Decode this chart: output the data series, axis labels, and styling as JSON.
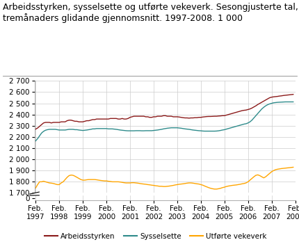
{
  "title": "Arbeidsstyrken, sysselsette og utførte vekeverk. Sesongjusterte tal,\ntremånaders glidande gjennomsnitt. 1997-2008. 1 000",
  "color_arbeidsstyrken": "#8B1A1A",
  "color_sysselsette": "#2E8B8B",
  "color_utforte": "#FFA500",
  "legend_labels": [
    "Arbeidsstyrken",
    "Sysselsette",
    "Utførte vekeverk"
  ],
  "background_color": "#ffffff",
  "grid_color": "#cccccc",
  "title_fontsize": 9.0,
  "tick_fontsize": 7.5,
  "legend_fontsize": 7.5,
  "arbeidsstyrken": [
    2270,
    2280,
    2295,
    2310,
    2325,
    2330,
    2330,
    2330,
    2325,
    2330,
    2330,
    2330,
    2330,
    2335,
    2335,
    2335,
    2345,
    2350,
    2350,
    2345,
    2340,
    2340,
    2335,
    2335,
    2335,
    2340,
    2345,
    2345,
    2350,
    2355,
    2355,
    2360,
    2360,
    2360,
    2360,
    2360,
    2360,
    2360,
    2365,
    2365,
    2365,
    2365,
    2360,
    2360,
    2365,
    2360,
    2360,
    2365,
    2375,
    2380,
    2385,
    2385,
    2385,
    2385,
    2385,
    2385,
    2380,
    2380,
    2375,
    2375,
    2380,
    2380,
    2385,
    2385,
    2385,
    2390,
    2390,
    2385,
    2385,
    2385,
    2380,
    2380,
    2380,
    2378,
    2375,
    2372,
    2370,
    2370,
    2368,
    2370,
    2370,
    2372,
    2372,
    2375,
    2375,
    2378,
    2380,
    2382,
    2383,
    2383,
    2384,
    2385,
    2385,
    2387,
    2388,
    2390,
    2390,
    2395,
    2400,
    2405,
    2410,
    2415,
    2420,
    2425,
    2430,
    2435,
    2438,
    2440,
    2445,
    2450,
    2458,
    2468,
    2478,
    2490,
    2500,
    2510,
    2520,
    2530,
    2540,
    2550,
    2555,
    2558,
    2560,
    2562,
    2565,
    2567,
    2570,
    2572,
    2574,
    2576,
    2578,
    2580
  ],
  "sysselsette": [
    2165,
    2185,
    2210,
    2235,
    2250,
    2260,
    2265,
    2268,
    2268,
    2268,
    2268,
    2265,
    2262,
    2262,
    2262,
    2262,
    2265,
    2268,
    2268,
    2268,
    2265,
    2265,
    2262,
    2260,
    2258,
    2260,
    2262,
    2265,
    2268,
    2272,
    2272,
    2275,
    2275,
    2275,
    2275,
    2275,
    2275,
    2272,
    2272,
    2272,
    2270,
    2268,
    2265,
    2262,
    2260,
    2258,
    2256,
    2255,
    2255,
    2255,
    2255,
    2256,
    2256,
    2256,
    2255,
    2255,
    2256,
    2256,
    2256,
    2256,
    2258,
    2260,
    2262,
    2265,
    2268,
    2272,
    2275,
    2278,
    2280,
    2282,
    2282,
    2282,
    2282,
    2280,
    2278,
    2275,
    2272,
    2270,
    2268,
    2265,
    2262,
    2260,
    2258,
    2256,
    2255,
    2253,
    2252,
    2252,
    2252,
    2252,
    2252,
    2252,
    2253,
    2255,
    2258,
    2262,
    2265,
    2270,
    2275,
    2280,
    2285,
    2290,
    2295,
    2300,
    2305,
    2310,
    2315,
    2318,
    2325,
    2335,
    2350,
    2370,
    2390,
    2410,
    2430,
    2450,
    2465,
    2478,
    2488,
    2495,
    2500,
    2505,
    2507,
    2509,
    2510,
    2511,
    2512,
    2513,
    2513,
    2513,
    2513,
    2513
  ],
  "utforte_vekeverk": [
    1745,
    1775,
    1800,
    1800,
    1805,
    1800,
    1795,
    1790,
    1788,
    1785,
    1780,
    1775,
    1775,
    1790,
    1800,
    1820,
    1840,
    1855,
    1860,
    1858,
    1850,
    1840,
    1830,
    1820,
    1815,
    1815,
    1818,
    1820,
    1820,
    1820,
    1820,
    1818,
    1815,
    1812,
    1810,
    1808,
    1808,
    1805,
    1803,
    1800,
    1800,
    1800,
    1800,
    1798,
    1795,
    1792,
    1790,
    1790,
    1790,
    1792,
    1792,
    1790,
    1788,
    1785,
    1782,
    1780,
    1778,
    1775,
    1773,
    1770,
    1768,
    1765,
    1763,
    1760,
    1760,
    1758,
    1758,
    1760,
    1762,
    1765,
    1768,
    1772,
    1775,
    1778,
    1780,
    1782,
    1785,
    1788,
    1790,
    1790,
    1788,
    1785,
    1782,
    1780,
    1775,
    1770,
    1762,
    1755,
    1748,
    1742,
    1738,
    1735,
    1735,
    1738,
    1742,
    1748,
    1752,
    1758,
    1762,
    1765,
    1768,
    1770,
    1772,
    1775,
    1778,
    1782,
    1785,
    1790,
    1800,
    1815,
    1830,
    1845,
    1858,
    1862,
    1855,
    1845,
    1835,
    1845,
    1860,
    1875,
    1890,
    1900,
    1908,
    1912,
    1915,
    1918,
    1920,
    1922,
    1924,
    1926,
    1928,
    1930
  ]
}
